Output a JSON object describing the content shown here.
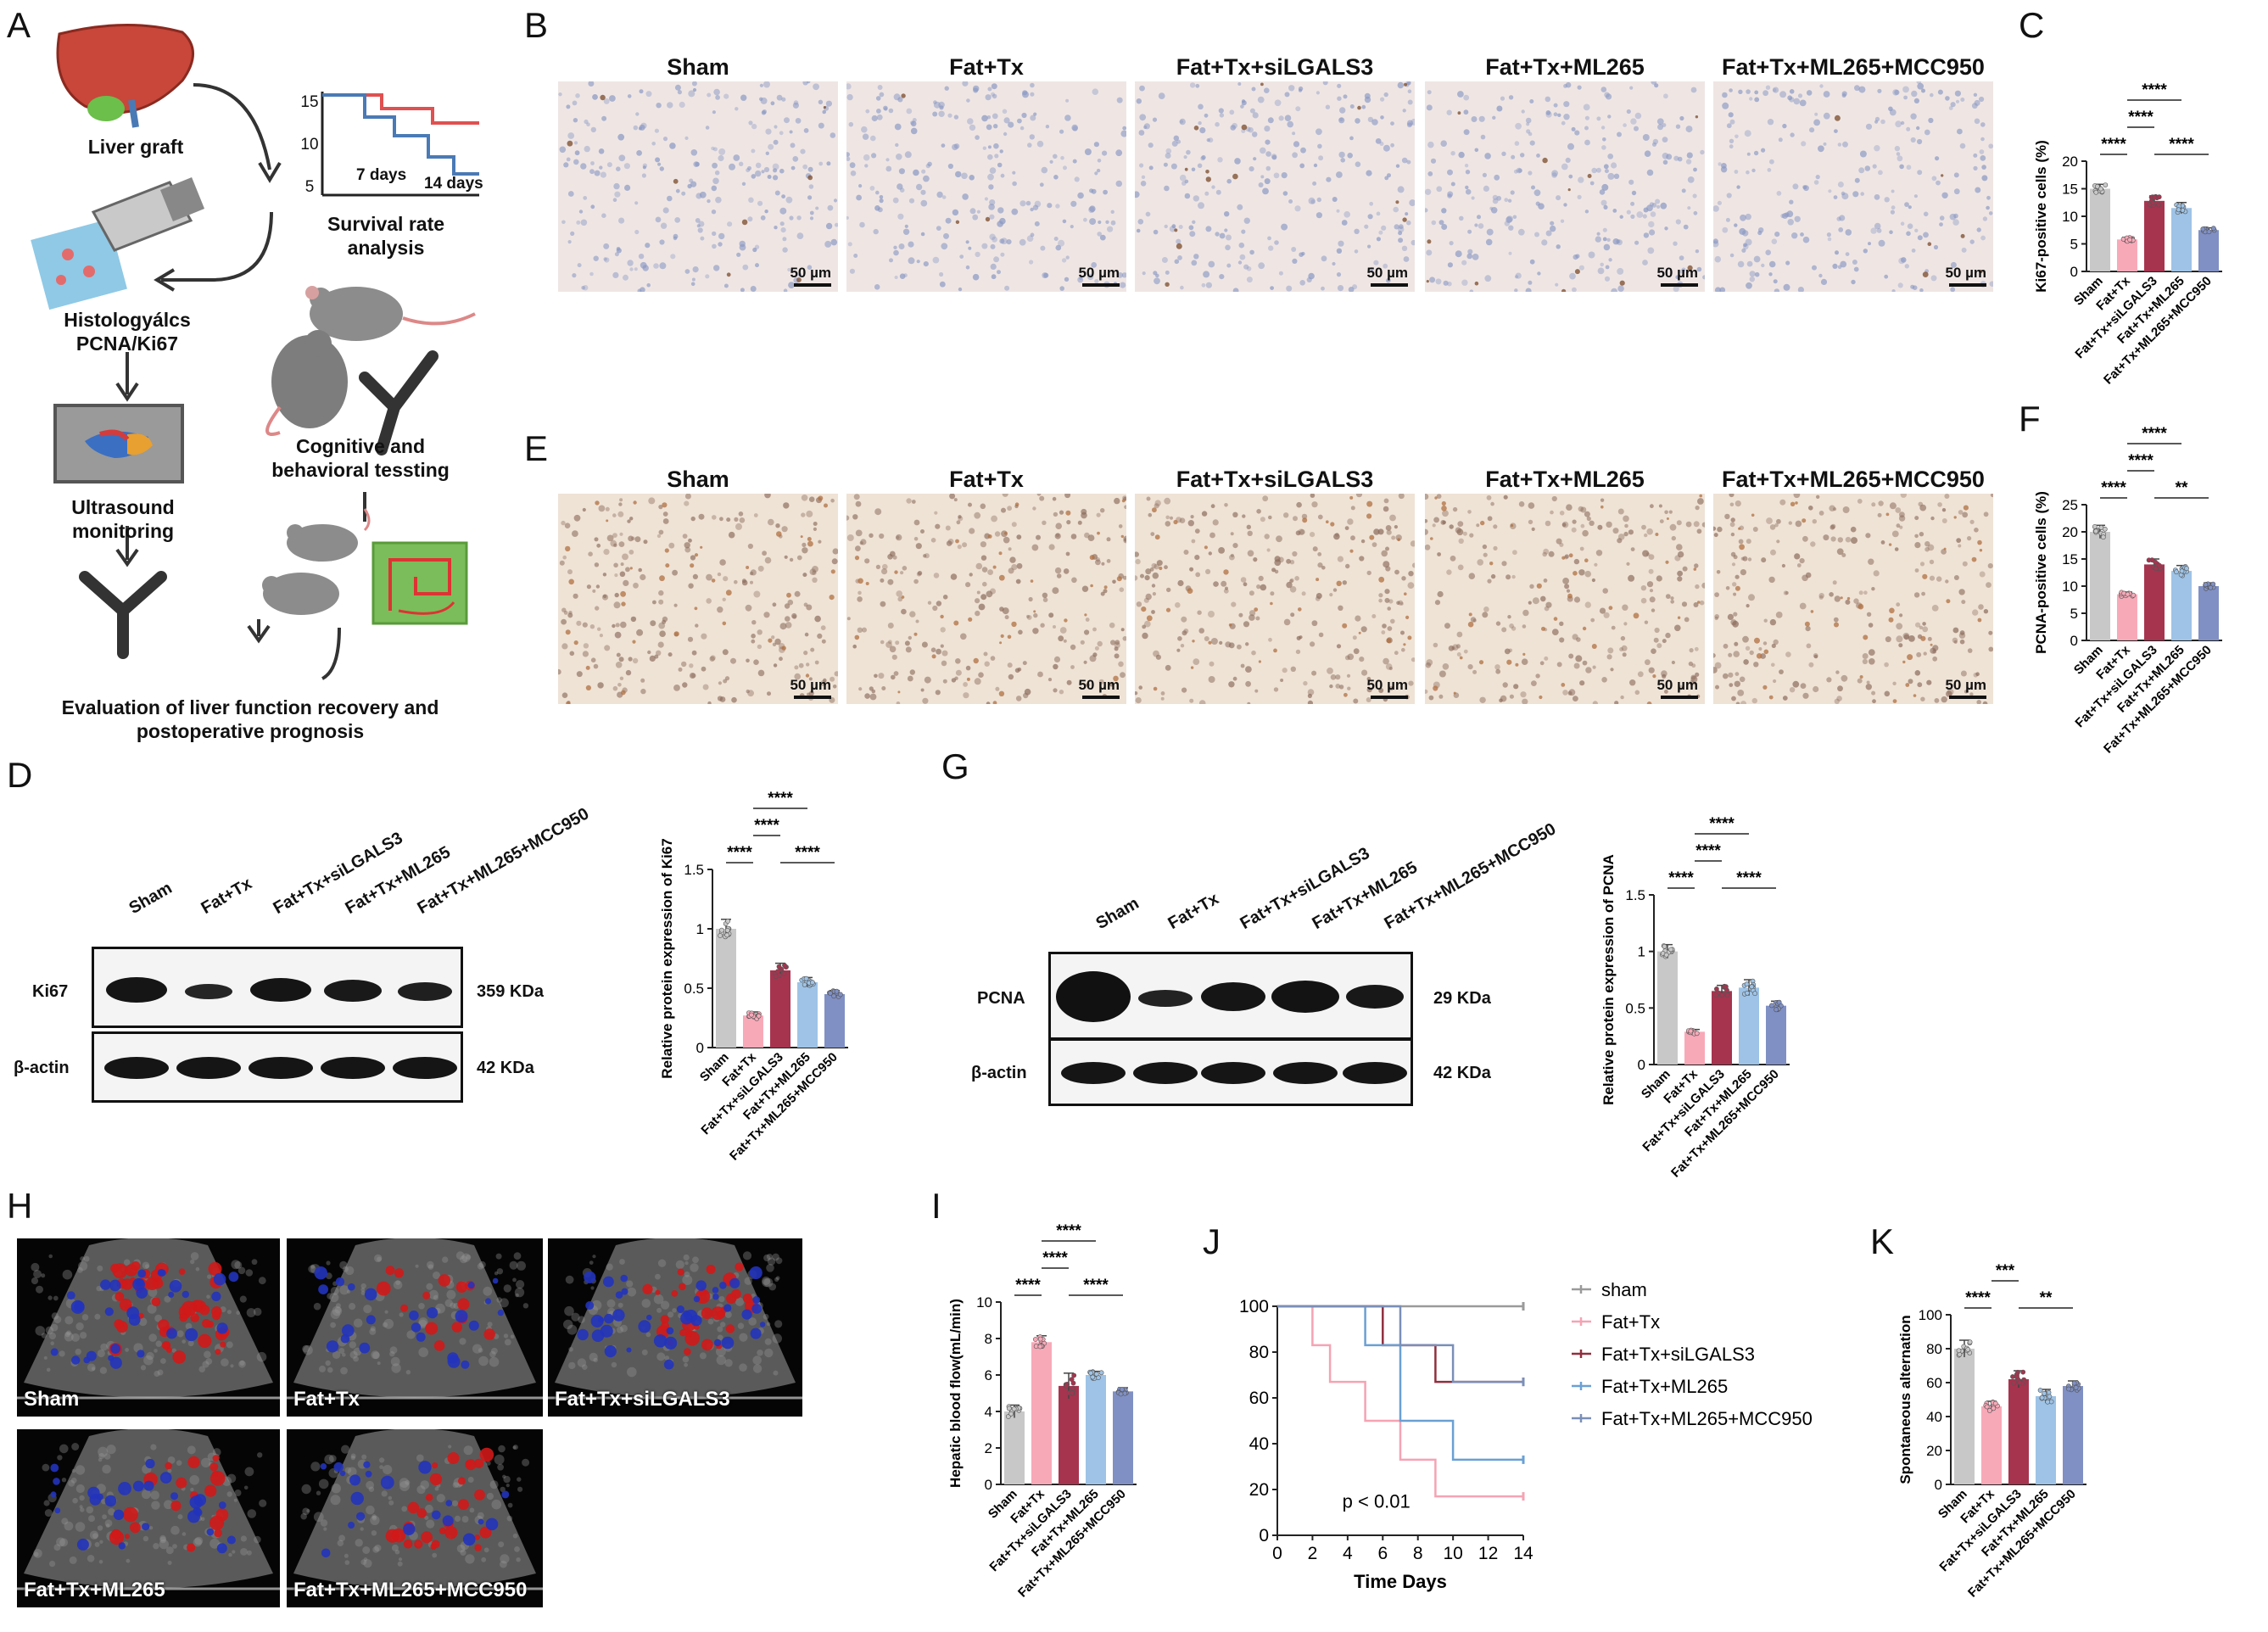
{
  "panel_letters": {
    "A": "A",
    "B": "B",
    "C": "C",
    "D": "D",
    "E": "E",
    "F": "F",
    "G": "G",
    "H": "H",
    "I": "I",
    "J": "J",
    "K": "K"
  },
  "panel_a": {
    "liver_graft": "Liver graft",
    "survival_axis": [
      "15",
      "10",
      "5"
    ],
    "days_7": "7 days",
    "days_14": "14 days",
    "survival_analysis": "Survival rate analysis",
    "histology": "Histologyálcs",
    "histology_sub": "PCNA/Ki67",
    "cognitive": "Cognitive and behavioral tessting",
    "ultrasound": "Ultrasound monitoring",
    "evaluation": "Evaluation of liver function recovery and postoperative prognosis",
    "colors": {
      "survival_red": "#e05050",
      "survival_blue": "#4a7ab5",
      "liver": "#c8473a",
      "maze": "#7bbd5a"
    }
  },
  "groups": [
    "Sham",
    "Fat+Tx",
    "Fat+Tx+siLGALS3",
    "Fat+Tx+ML265",
    "Fat+Tx+ML265+MCC950"
  ],
  "group_colors": [
    "#c8c8c8",
    "#f7a9b8",
    "#a6344f",
    "#9ec3e6",
    "#8090c4"
  ],
  "scale_bar": "50 µm",
  "blot_d": {
    "band1": "Ki67",
    "band1_size": "359 KDa",
    "band2": "β-actin",
    "band2_size": "42 KDa"
  },
  "blot_g": {
    "band1": "PCNA",
    "band1_size": "29 KDa",
    "band2": "β-actin",
    "band2_size": "42 KDa"
  },
  "ultrasound_labels": [
    "Sham",
    "Fat+Tx",
    "Fat+Tx+siLGALS3",
    "Fat+Tx+ML265",
    "Fat+Tx+ML265+MCC950"
  ],
  "chart_data": [
    {
      "id": "C",
      "type": "bar",
      "categories": [
        "Sham",
        "Fat+Tx",
        "Fat+Tx+siLGALS3",
        "Fat+Tx+ML265",
        "Fat+Tx+ML265+MCC950"
      ],
      "values": [
        15,
        5.8,
        12.8,
        11.5,
        7.5
      ],
      "errors": [
        0.8,
        0.4,
        0.9,
        1.0,
        0.4
      ],
      "ylabel": "Ki67-positive cells (%)",
      "ylim": [
        0,
        20
      ],
      "yticks": [
        0,
        5,
        10,
        15,
        20
      ],
      "sig": [
        {
          "from": 0,
          "to": 1,
          "label": "****",
          "level": 0
        },
        {
          "from": 1,
          "to": 2,
          "label": "****",
          "level": 1
        },
        {
          "from": 1,
          "to": 3,
          "label": "****",
          "level": 2
        },
        {
          "from": 2,
          "to": 4,
          "label": "****",
          "level": 0
        }
      ]
    },
    {
      "id": "F",
      "type": "bar",
      "categories": [
        "Sham",
        "Fat+Tx",
        "Fat+Tx+siLGALS3",
        "Fat+Tx+ML265",
        "Fat+Tx+ML265+MCC950"
      ],
      "values": [
        20,
        8.5,
        14,
        12.8,
        10
      ],
      "errors": [
        1.2,
        0.4,
        1.0,
        1.0,
        0.6
      ],
      "ylabel": "PCNA-positive cells (%)",
      "ylim": [
        0,
        25
      ],
      "yticks": [
        0,
        5,
        10,
        15,
        20,
        25
      ],
      "sig": [
        {
          "from": 0,
          "to": 1,
          "label": "****",
          "level": 0
        },
        {
          "from": 1,
          "to": 2,
          "label": "****",
          "level": 1
        },
        {
          "from": 1,
          "to": 3,
          "label": "****",
          "level": 2
        },
        {
          "from": 2,
          "to": 4,
          "label": "**",
          "level": 0
        }
      ]
    },
    {
      "id": "D",
      "type": "bar",
      "categories": [
        "Sham",
        "Fat+Tx",
        "Fat+Tx+siLGALS3",
        "Fat+Tx+ML265",
        "Fat+Tx+ML265+MCC950"
      ],
      "values": [
        1.0,
        0.27,
        0.65,
        0.55,
        0.45
      ],
      "errors": [
        0.08,
        0.03,
        0.06,
        0.04,
        0.03
      ],
      "ylabel": "Relative protein expression of  Ki67",
      "ylim": [
        0,
        1.5
      ],
      "yticks": [
        0.0,
        0.5,
        1.0,
        1.5
      ],
      "sig": [
        {
          "from": 0,
          "to": 1,
          "label": "****",
          "level": 0
        },
        {
          "from": 1,
          "to": 2,
          "label": "****",
          "level": 1
        },
        {
          "from": 1,
          "to": 3,
          "label": "****",
          "level": 2
        },
        {
          "from": 2,
          "to": 4,
          "label": "****",
          "level": 0
        }
      ]
    },
    {
      "id": "G",
      "type": "bar",
      "categories": [
        "Sham",
        "Fat+Tx",
        "Fat+Tx+siLGALS3",
        "Fat+Tx+ML265",
        "Fat+Tx+ML265+MCC950"
      ],
      "values": [
        1.0,
        0.29,
        0.65,
        0.68,
        0.52
      ],
      "errors": [
        0.06,
        0.02,
        0.05,
        0.07,
        0.04
      ],
      "ylabel": "Relative protein expression of  PCNA",
      "ylim": [
        0,
        1.5
      ],
      "yticks": [
        0.0,
        0.5,
        1.0,
        1.5
      ],
      "sig": [
        {
          "from": 0,
          "to": 1,
          "label": "****",
          "level": 0
        },
        {
          "from": 1,
          "to": 2,
          "label": "****",
          "level": 1
        },
        {
          "from": 1,
          "to": 3,
          "label": "****",
          "level": 2
        },
        {
          "from": 2,
          "to": 4,
          "label": "****",
          "level": 0
        }
      ]
    },
    {
      "id": "I",
      "type": "bar",
      "categories": [
        "Sham",
        "Fat+Tx",
        "Fat+Tx+siLGALS3",
        "Fat+Tx+ML265",
        "Fat+Tx+ML265+MCC950"
      ],
      "values": [
        4.0,
        7.8,
        5.4,
        6.0,
        5.1
      ],
      "errors": [
        0.35,
        0.35,
        0.7,
        0.2,
        0.2
      ],
      "ylabel": "Hepatic blood flow(mL/min)",
      "ylim": [
        0,
        10
      ],
      "yticks": [
        0,
        2,
        4,
        6,
        8,
        10
      ],
      "sig": [
        {
          "from": 0,
          "to": 1,
          "label": "****",
          "level": 0
        },
        {
          "from": 1,
          "to": 2,
          "label": "****",
          "level": 1
        },
        {
          "from": 1,
          "to": 3,
          "label": "****",
          "level": 2
        },
        {
          "from": 2,
          "to": 4,
          "label": "****",
          "level": 0
        }
      ]
    },
    {
      "id": "K",
      "type": "bar",
      "categories": [
        "Sham",
        "Fat+Tx",
        "Fat+Tx+siLGALS3",
        "Fat+Tx+ML265",
        "Fat+Tx+ML265+MCC950"
      ],
      "values": [
        80,
        46,
        62,
        52,
        58
      ],
      "errors": [
        5,
        3,
        5,
        4,
        3
      ],
      "ylabel": "Spontaneous alternation",
      "ylim": [
        0,
        100
      ],
      "yticks": [
        0,
        20,
        40,
        60,
        80,
        100
      ],
      "sig": [
        {
          "from": 0,
          "to": 1,
          "label": "****",
          "level": 0
        },
        {
          "from": 1,
          "to": 2,
          "label": "***",
          "level": 1
        },
        {
          "from": 2,
          "to": 4,
          "label": "**",
          "level": 0
        }
      ]
    },
    {
      "id": "J",
      "type": "line",
      "xlabel": "Time Days",
      "x_ticks": [
        0,
        2,
        4,
        6,
        8,
        10,
        12,
        14
      ],
      "ylim": [
        0,
        100
      ],
      "yticks": [
        0,
        20,
        40,
        60,
        80,
        100
      ],
      "annotation": "p < 0.01",
      "legend_position": "right",
      "series": [
        {
          "name": "sham",
          "color": "#9a9a9a",
          "steps": [
            [
              0,
              100
            ],
            [
              14,
              100
            ]
          ]
        },
        {
          "name": "Fat+Tx",
          "color": "#f5a3b3",
          "steps": [
            [
              0,
              100
            ],
            [
              2,
              100
            ],
            [
              2,
              83
            ],
            [
              3,
              83
            ],
            [
              3,
              67
            ],
            [
              5,
              67
            ],
            [
              5,
              50
            ],
            [
              7,
              50
            ],
            [
              7,
              33
            ],
            [
              9,
              33
            ],
            [
              9,
              17
            ],
            [
              14,
              17
            ]
          ]
        },
        {
          "name": "Fat+Tx+siLGALS3",
          "color": "#8f2f3f",
          "steps": [
            [
              0,
              100
            ],
            [
              6,
              100
            ],
            [
              6,
              83
            ],
            [
              9,
              83
            ],
            [
              9,
              67
            ],
            [
              14,
              67
            ]
          ]
        },
        {
          "name": "Fat+Tx+ML265",
          "color": "#6aa0d4",
          "steps": [
            [
              0,
              100
            ],
            [
              5,
              100
            ],
            [
              5,
              83
            ],
            [
              7,
              83
            ],
            [
              7,
              50
            ],
            [
              10,
              50
            ],
            [
              10,
              33
            ],
            [
              14,
              33
            ]
          ]
        },
        {
          "name": "Fat+Tx+ML265+MCC950",
          "color": "#7a8fb8",
          "steps": [
            [
              0,
              100
            ],
            [
              7,
              100
            ],
            [
              7,
              83
            ],
            [
              10,
              83
            ],
            [
              10,
              67
            ],
            [
              14,
              67
            ]
          ]
        }
      ]
    }
  ]
}
